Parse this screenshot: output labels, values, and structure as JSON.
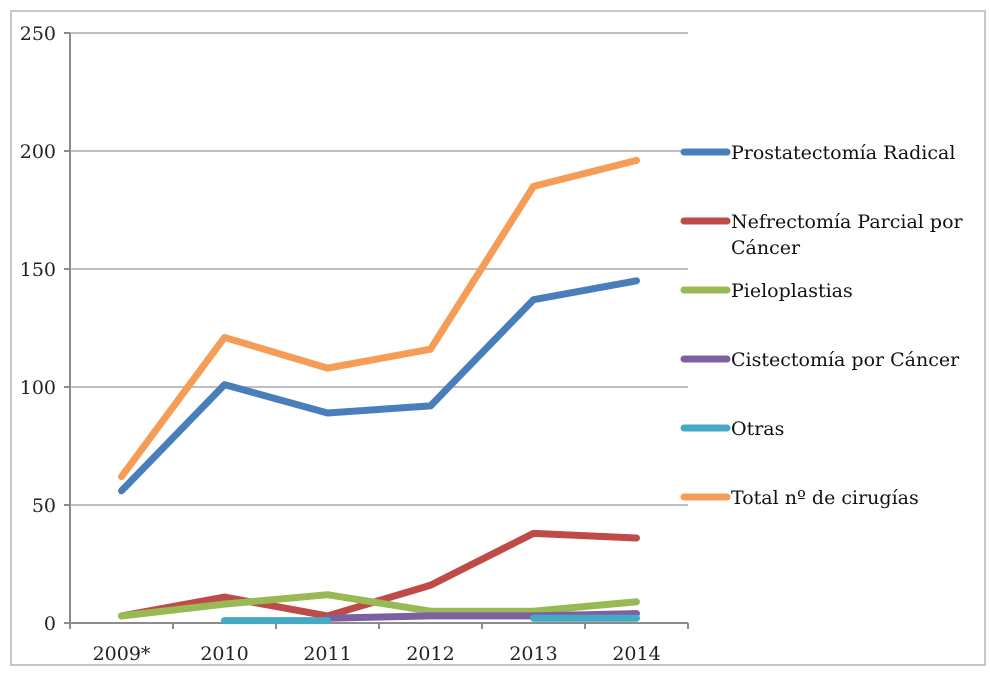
{
  "chart_data": {
    "type": "line",
    "title": "",
    "xlabel": "",
    "ylabel": "",
    "categories": [
      "2009*",
      "2010",
      "2011",
      "2012",
      "2013",
      "2014"
    ],
    "ylim": [
      0,
      250
    ],
    "yticks": [
      0,
      50,
      100,
      150,
      200,
      250
    ],
    "grid": true,
    "legend_position": "right",
    "series": [
      {
        "name": "Prostatectomía Radical",
        "color": "#4a7ebb",
        "values": [
          56,
          101,
          89,
          92,
          137,
          145
        ]
      },
      {
        "name": "Nefrectomía Parcial por Cáncer",
        "color": "#be4b48",
        "values": [
          3,
          11,
          3,
          16,
          38,
          36
        ]
      },
      {
        "name": "Pieloplastias",
        "color": "#98b954",
        "values": [
          3,
          8,
          12,
          5,
          5,
          9
        ]
      },
      {
        "name": "Cistectomía por Cáncer",
        "color": "#7d60a0",
        "values": [
          null,
          null,
          2,
          3,
          3,
          4
        ]
      },
      {
        "name": "Otras",
        "color": "#46aac5",
        "values": [
          null,
          1,
          1,
          null,
          2,
          2
        ]
      },
      {
        "name": "Total nº de cirugías",
        "color": "#f59d56",
        "values": [
          62,
          121,
          108,
          116,
          185,
          196
        ]
      }
    ]
  }
}
